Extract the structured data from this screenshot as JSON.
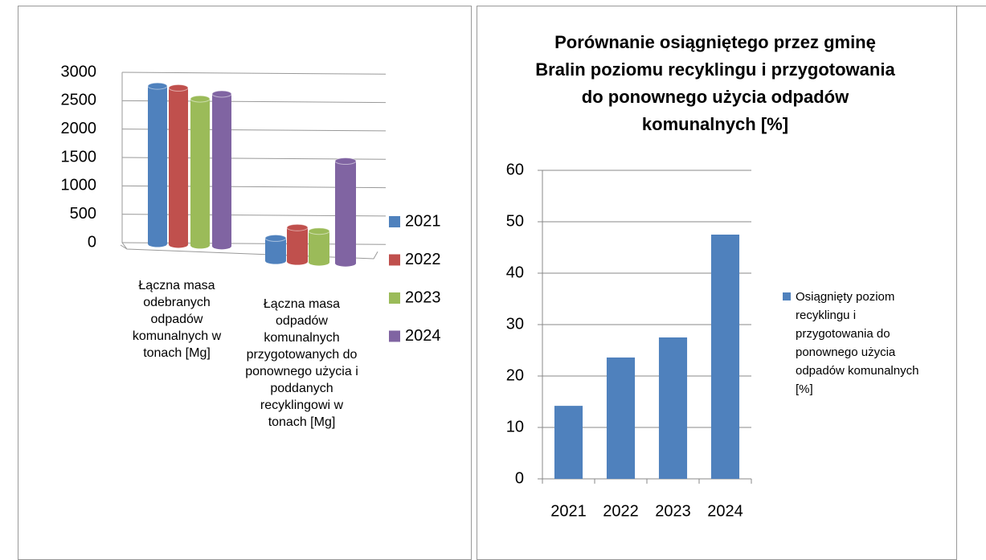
{
  "chart_data": [
    {
      "type": "bar3d",
      "categories": [
        "Łączna masa odebranych odpadów komunalnych w tonach [Mg]",
        "Łączna masa odpadów komunalnych przygotowanych do ponownego użycia i poddanych recyklingowi w tonach [Mg]"
      ],
      "series": [
        {
          "name": "2021",
          "color": "#4f81bd",
          "values": [
            2780,
            400
          ]
        },
        {
          "name": "2022",
          "color": "#c0504d",
          "values": [
            2760,
            600
          ]
        },
        {
          "name": "2023",
          "color": "#9bbb59",
          "values": [
            2580,
            550
          ]
        },
        {
          "name": "2024",
          "color": "#8064a2",
          "values": [
            2680,
            1800
          ]
        }
      ],
      "ylim": [
        0,
        3000
      ],
      "yticks": [
        0,
        500,
        1000,
        1500,
        2000,
        2500,
        3000
      ],
      "grid": true,
      "legend": "right"
    },
    {
      "type": "bar",
      "title": "Porównanie osiągniętego przez gminę Bralin poziomu recyklingu i przygotowania do ponownego użycia odpadów komunalnych [%]",
      "categories": [
        "2021",
        "2022",
        "2023",
        "2024"
      ],
      "series": [
        {
          "name": "Osiągnięty poziom recyklingu i przygotowania do ponownego użycia odpadów komunalnych [%]",
          "color": "#4f81bd",
          "values": [
            14.2,
            23.6,
            27.5,
            47.5
          ]
        }
      ],
      "ylim": [
        0,
        60
      ],
      "yticks": [
        0,
        10,
        20,
        30,
        40,
        50,
        60
      ],
      "grid": true,
      "legend": "right"
    }
  ]
}
